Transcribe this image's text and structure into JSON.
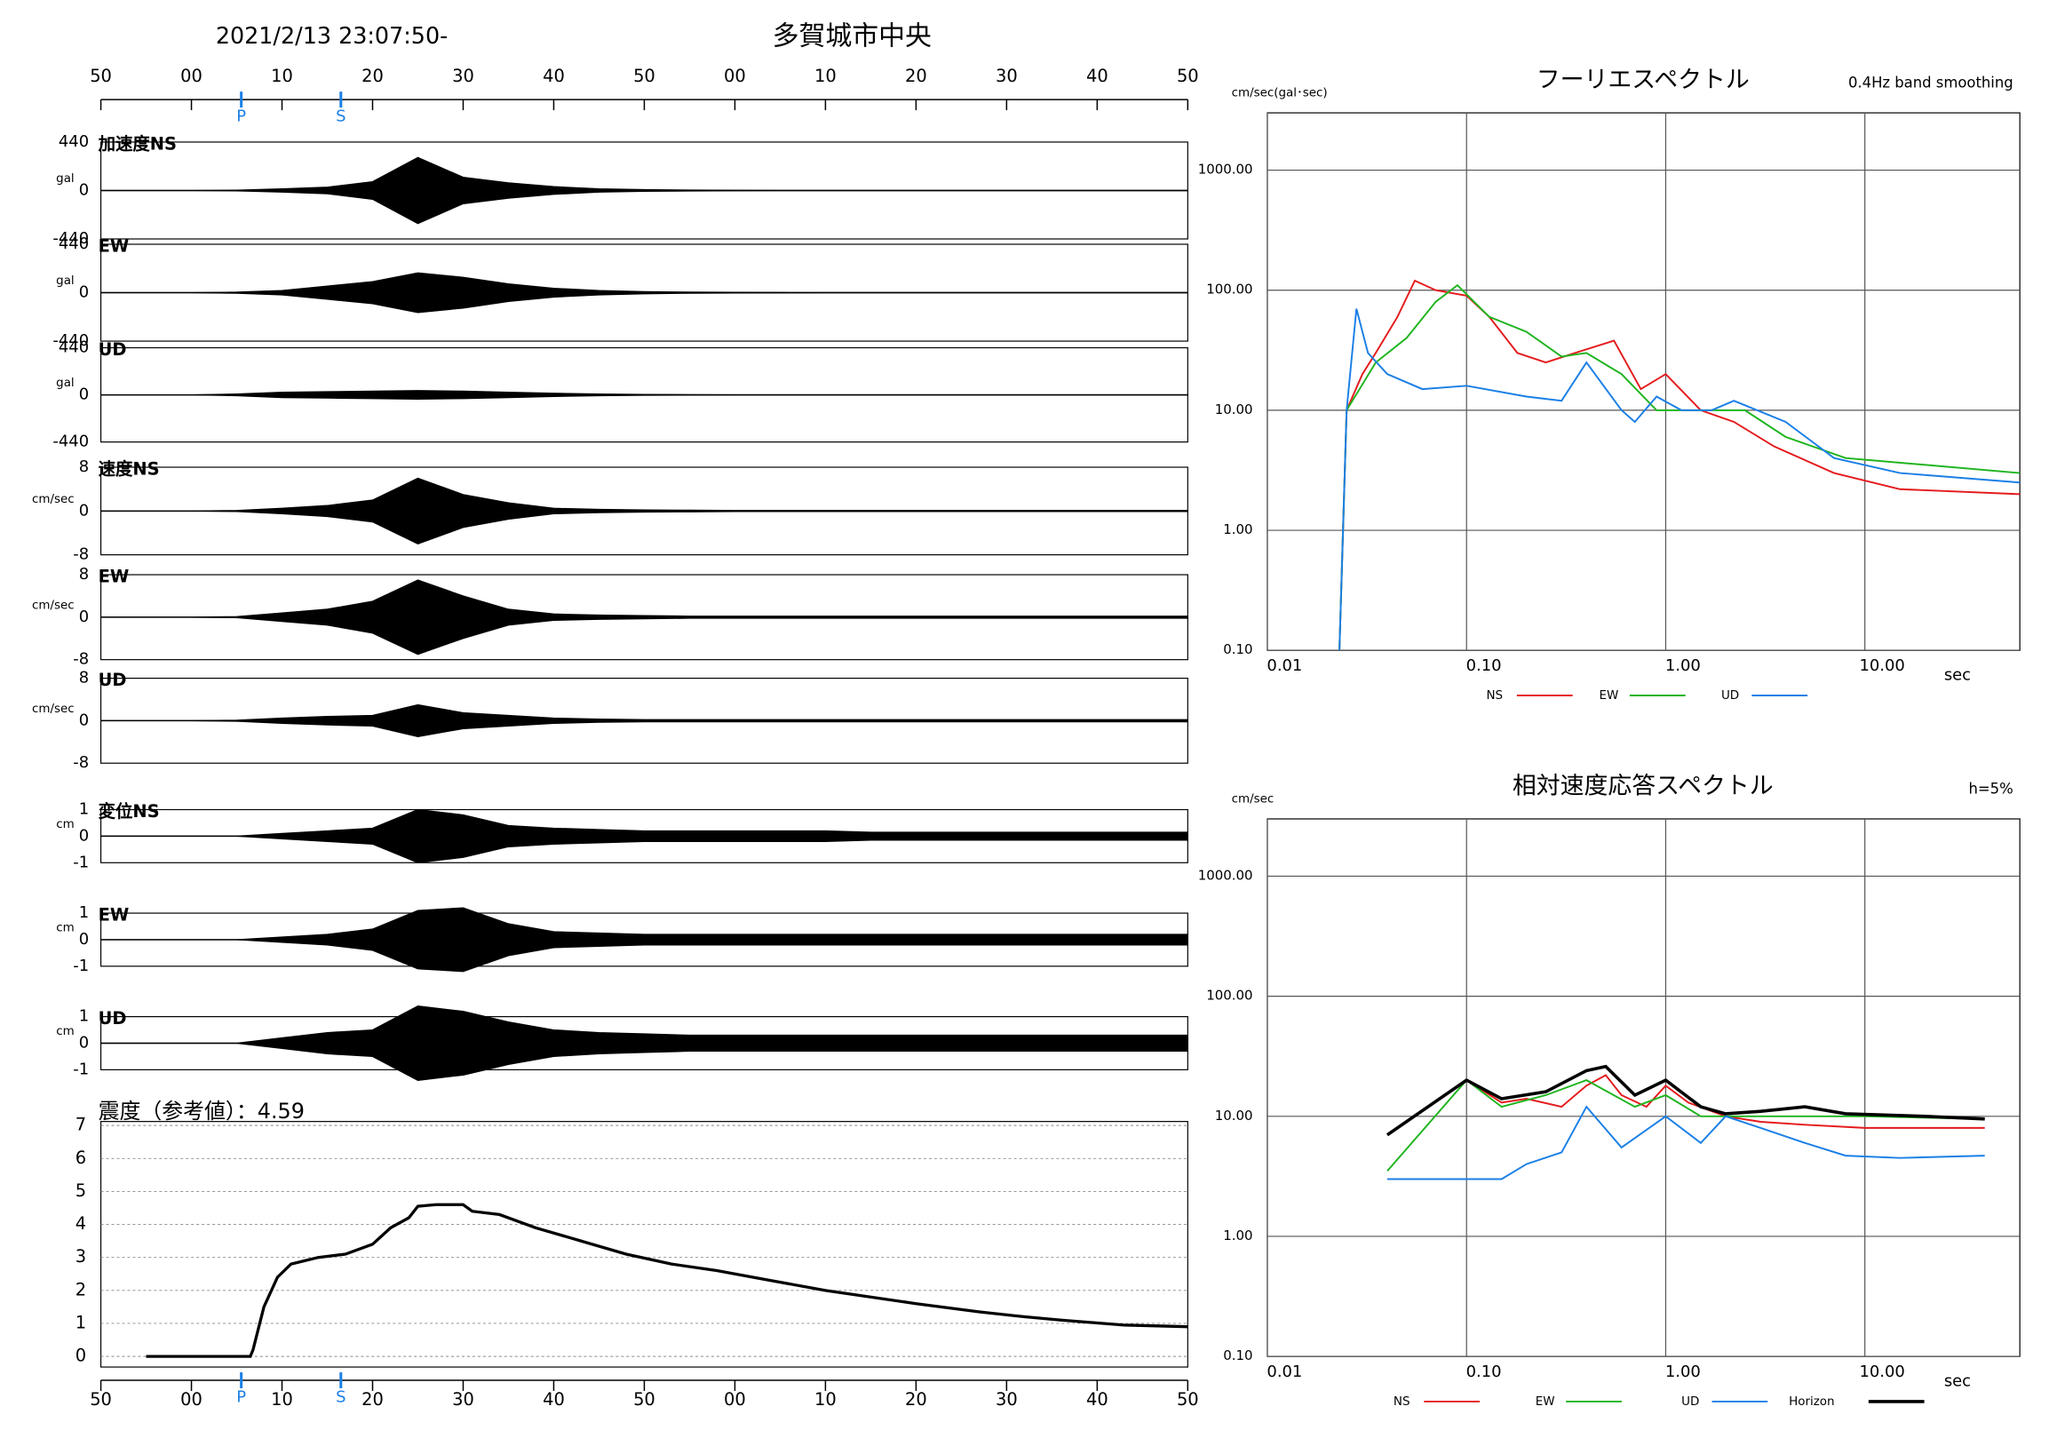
{
  "chart_data": [
    {
      "type": "waveform",
      "title": "多賀城市中央",
      "subtitle": "2021/2/13 23:07:50-",
      "xlim": [
        0,
        120
      ],
      "xticks": [
        {
          "value": 0,
          "label": "50"
        },
        {
          "value": 10,
          "label": "00"
        },
        {
          "value": 20,
          "label": "10"
        },
        {
          "value": 30,
          "label": "20"
        },
        {
          "value": 40,
          "label": "30"
        },
        {
          "value": 50,
          "label": "40"
        },
        {
          "value": 60,
          "label": "50"
        },
        {
          "value": 70,
          "label": "00"
        },
        {
          "value": 80,
          "label": "10"
        },
        {
          "value": 90,
          "label": "20"
        },
        {
          "value": 100,
          "label": "30"
        },
        {
          "value": 110,
          "label": "40"
        },
        {
          "value": 120,
          "label": "50"
        }
      ],
      "markers": [
        {
          "label": "P",
          "x": 15.5
        },
        {
          "label": "S",
          "x": 26.5
        }
      ],
      "x": [
        0,
        5,
        10,
        15,
        20,
        25,
        30,
        35,
        40,
        45,
        50,
        55,
        60,
        65,
        70,
        75,
        80,
        85,
        90,
        95,
        100,
        105,
        110,
        115,
        120
      ],
      "traces": [
        {
          "label": "加速度NS",
          "unit": "gal",
          "ylim": [
            -440,
            440
          ],
          "yticks": [
            440,
            0,
            -440
          ],
          "color": "#000000",
          "values": [
            0,
            0,
            0,
            3,
            15,
            30,
            80,
            300,
            120,
            70,
            35,
            15,
            8,
            4,
            2,
            1,
            1,
            1,
            1,
            1,
            1,
            1,
            1,
            1,
            1
          ]
        },
        {
          "label": "EW",
          "unit": "gal",
          "ylim": [
            -440,
            440
          ],
          "yticks": [
            440,
            0,
            -440
          ],
          "color": "#000000",
          "values": [
            0,
            0,
            0,
            5,
            20,
            60,
            100,
            180,
            140,
            80,
            40,
            20,
            10,
            5,
            3,
            2,
            1,
            1,
            1,
            1,
            1,
            1,
            1,
            1,
            1
          ]
        },
        {
          "label": "UD",
          "unit": "gal",
          "ylim": [
            -440,
            440
          ],
          "yticks": [
            440,
            0,
            -440
          ],
          "color": "#000000",
          "values": [
            0,
            0,
            0,
            8,
            25,
            30,
            35,
            40,
            35,
            25,
            15,
            8,
            4,
            2,
            1,
            1,
            1,
            1,
            1,
            1,
            1,
            1,
            1,
            1,
            1
          ]
        },
        {
          "label": "速度NS",
          "unit": "cm/sec",
          "ylim": [
            -8,
            8
          ],
          "yticks": [
            8,
            0,
            -8
          ],
          "color": "#000000",
          "values": [
            0,
            0,
            0,
            0.1,
            0.5,
            1,
            2,
            6,
            3,
            1.5,
            0.5,
            0.3,
            0.2,
            0.15,
            0.1,
            0.1,
            0.1,
            0.1,
            0.1,
            0.1,
            0.1,
            0.1,
            0.1,
            0.1,
            0.1
          ]
        },
        {
          "label": "EW",
          "unit": "cm/sec",
          "ylim": [
            -8,
            8
          ],
          "yticks": [
            8,
            0,
            -8
          ],
          "color": "#000000",
          "values": [
            0,
            0,
            0,
            0.1,
            0.8,
            1.5,
            3,
            7,
            4,
            1.5,
            0.6,
            0.4,
            0.3,
            0.2,
            0.2,
            0.2,
            0.2,
            0.2,
            0.2,
            0.2,
            0.2,
            0.2,
            0.2,
            0.2,
            0.2
          ]
        },
        {
          "label": "UD",
          "unit": "cm/sec",
          "ylim": [
            -8,
            8
          ],
          "yticks": [
            8,
            0,
            -8
          ],
          "color": "#000000",
          "values": [
            0,
            0,
            0,
            0.1,
            0.5,
            0.8,
            1,
            3,
            1.5,
            1,
            0.5,
            0.3,
            0.2,
            0.2,
            0.2,
            0.2,
            0.2,
            0.2,
            0.2,
            0.2,
            0.2,
            0.2,
            0.2,
            0.2,
            0.2
          ]
        },
        {
          "label": "変位NS",
          "unit": "cm",
          "ylim": [
            -1,
            1
          ],
          "yticks": [
            1,
            0,
            -1
          ],
          "color": "#000000",
          "values": [
            0,
            0,
            0,
            0,
            0.1,
            0.2,
            0.3,
            1,
            0.8,
            0.4,
            0.3,
            0.25,
            0.2,
            0.2,
            0.2,
            0.2,
            0.2,
            0.15,
            0.15,
            0.15,
            0.15,
            0.15,
            0.15,
            0.15,
            0.15
          ]
        },
        {
          "label": "EW",
          "unit": "cm",
          "ylim": [
            -1,
            1
          ],
          "yticks": [
            1,
            0,
            -1
          ],
          "color": "#000000",
          "values": [
            0,
            0,
            0,
            0,
            0.1,
            0.2,
            0.4,
            1.1,
            1.2,
            0.6,
            0.3,
            0.25,
            0.2,
            0.2,
            0.2,
            0.2,
            0.2,
            0.2,
            0.2,
            0.2,
            0.2,
            0.2,
            0.2,
            0.2,
            0.2
          ]
        },
        {
          "label": "UD",
          "unit": "cm",
          "ylim": [
            -1,
            1
          ],
          "yticks": [
            1,
            0,
            -1
          ],
          "color": "#000000",
          "values": [
            0,
            0,
            0,
            0,
            0.2,
            0.4,
            0.5,
            1.4,
            1.2,
            0.8,
            0.5,
            0.4,
            0.35,
            0.3,
            0.3,
            0.3,
            0.3,
            0.3,
            0.3,
            0.3,
            0.3,
            0.3,
            0.3,
            0.3,
            0.3
          ]
        }
      ]
    },
    {
      "type": "line",
      "title": "震度（参考値）：4.59",
      "xlim": [
        0,
        120
      ],
      "xticks": [
        {
          "value": 0,
          "label": "50"
        },
        {
          "value": 10,
          "label": "00"
        },
        {
          "value": 20,
          "label": "10"
        },
        {
          "value": 30,
          "label": "20"
        },
        {
          "value": 40,
          "label": "30"
        },
        {
          "value": 50,
          "label": "40"
        },
        {
          "value": 60,
          "label": "50"
        },
        {
          "value": 70,
          "label": "00"
        },
        {
          "value": 80,
          "label": "10"
        },
        {
          "value": 90,
          "label": "20"
        },
        {
          "value": 100,
          "label": "30"
        },
        {
          "value": 110,
          "label": "40"
        },
        {
          "value": 120,
          "label": "50"
        }
      ],
      "markers": [
        {
          "label": "P",
          "x": 15.5
        },
        {
          "label": "S",
          "x": 26.5
        }
      ],
      "ylim": [
        0,
        7
      ],
      "yticks": [
        0,
        1,
        2,
        3,
        4,
        5,
        6,
        7
      ],
      "grid": true,
      "color": "#000000",
      "x": [
        5,
        16.5,
        16.8,
        18,
        19.5,
        21,
        24,
        27,
        30,
        32,
        34,
        35,
        37,
        40,
        41,
        44,
        48,
        53,
        58,
        63,
        68,
        74,
        80,
        90,
        97,
        102,
        106,
        113,
        120
      ],
      "values": [
        0,
        0,
        0.2,
        1.5,
        2.4,
        2.8,
        3.0,
        3.1,
        3.4,
        3.9,
        4.2,
        4.55,
        4.6,
        4.6,
        4.4,
        4.3,
        3.9,
        3.5,
        3.1,
        2.8,
        2.6,
        2.3,
        2.0,
        1.6,
        1.35,
        1.2,
        1.1,
        0.95,
        0.9
      ]
    },
    {
      "type": "line",
      "log_x": true,
      "log_y": true,
      "grid": true,
      "title": "フーリエスペクトル",
      "subtitle": "0.4Hz band smoothing",
      "ylabel": "cm/sec(gal･sec)",
      "xlabel": "sec",
      "xlim": [
        0.01,
        60
      ],
      "ylim": [
        0.1,
        3000
      ],
      "xticks": [
        0.01,
        {
          "value": 0.1,
          "label": "0.10"
        },
        {
          "value": 1,
          "label": "1.00"
        },
        {
          "value": 10,
          "label": "10.00"
        }
      ],
      "yticks": [
        {
          "value": 0.1,
          "label": "0.10"
        },
        {
          "value": 1,
          "label": "1.00"
        },
        {
          "value": 10,
          "label": "10.00"
        },
        {
          "value": 100,
          "label": "100.00"
        },
        {
          "value": 1000,
          "label": "1000.00"
        }
      ],
      "series": [
        {
          "name": "NS",
          "color": "#e41a1c",
          "x": [
            0.023,
            0.025,
            0.03,
            0.035,
            0.045,
            0.055,
            0.07,
            0.1,
            0.13,
            0.18,
            0.25,
            0.35,
            0.55,
            0.75,
            1.0,
            1.5,
            2.2,
            3.5,
            7,
            15,
            60
          ],
          "values": [
            0.1,
            10,
            20,
            30,
            60,
            120,
            100,
            90,
            60,
            30,
            25,
            30,
            38,
            15,
            20,
            10,
            8,
            5,
            3,
            2.2,
            2
          ]
        },
        {
          "name": "EW",
          "color": "#1fb41f",
          "x": [
            0.023,
            0.025,
            0.035,
            0.05,
            0.07,
            0.09,
            0.13,
            0.2,
            0.3,
            0.4,
            0.6,
            0.9,
            1.5,
            2.5,
            4,
            8,
            60
          ],
          "values": [
            0.1,
            10,
            25,
            40,
            80,
            110,
            60,
            45,
            28,
            30,
            20,
            10,
            10,
            10,
            6,
            4,
            3
          ]
        },
        {
          "name": "UD",
          "color": "#1a7fe6",
          "x": [
            0.023,
            0.025,
            0.028,
            0.032,
            0.04,
            0.06,
            0.1,
            0.2,
            0.3,
            0.4,
            0.6,
            0.7,
            0.9,
            1.2,
            1.7,
            2.2,
            4,
            7,
            15,
            60
          ],
          "values": [
            0.1,
            10,
            70,
            30,
            20,
            15,
            16,
            13,
            12,
            25,
            10,
            8,
            13,
            10,
            10,
            12,
            8,
            4,
            3,
            2.5
          ]
        }
      ]
    },
    {
      "type": "line",
      "log_x": true,
      "log_y": true,
      "grid": true,
      "title": "相対速度応答スペクトル",
      "subtitle": "h=5%",
      "ylabel": "cm/sec",
      "xlabel": "sec",
      "xlim": [
        0.01,
        60
      ],
      "ylim": [
        0.1,
        3000
      ],
      "xticks": [
        0.01,
        {
          "value": 0.1,
          "label": "0.10"
        },
        {
          "value": 1,
          "label": "1.00"
        },
        {
          "value": 10,
          "label": "10.00"
        }
      ],
      "yticks": [
        {
          "value": 0.1,
          "label": "0.10"
        },
        {
          "value": 1,
          "label": "1.00"
        },
        {
          "value": 10,
          "label": "10.00"
        },
        {
          "value": 100,
          "label": "100.00"
        },
        {
          "value": 1000,
          "label": "1000.00"
        }
      ],
      "series": [
        {
          "name": "NS",
          "color": "#e41a1c",
          "x": [
            0.04,
            0.1,
            0.15,
            0.2,
            0.3,
            0.4,
            0.5,
            0.6,
            0.8,
            1.0,
            1.3,
            2,
            3,
            5,
            10,
            40
          ],
          "values": [
            7,
            20,
            13,
            14,
            12,
            18,
            22,
            15,
            12,
            18,
            13,
            10,
            9,
            8.5,
            8,
            8
          ]
        },
        {
          "name": "EW",
          "color": "#1fb41f",
          "x": [
            0.04,
            0.1,
            0.15,
            0.25,
            0.4,
            0.7,
            1.0,
            1.5,
            2,
            4,
            10,
            40
          ],
          "values": [
            3.5,
            20,
            12,
            15,
            20,
            12,
            15,
            10,
            10,
            10,
            10,
            9.5
          ]
        },
        {
          "name": "UD",
          "color": "#1a7fe6",
          "x": [
            0.04,
            0.1,
            0.15,
            0.2,
            0.3,
            0.4,
            0.6,
            1.0,
            1.5,
            2,
            3,
            5,
            8,
            15,
            40
          ],
          "values": [
            3,
            3,
            3,
            4,
            5,
            12,
            5.5,
            10,
            6,
            10,
            8,
            6,
            4.7,
            4.5,
            4.7
          ]
        },
        {
          "name": "Horizon",
          "color": "#000000",
          "x": [
            0.04,
            0.1,
            0.15,
            0.25,
            0.4,
            0.5,
            0.7,
            1.0,
            1.5,
            2,
            3,
            5,
            8,
            20,
            40
          ],
          "values": [
            7,
            20,
            14,
            16,
            24,
            26,
            15,
            20,
            12,
            10.5,
            11,
            12,
            10.5,
            10,
            9.5
          ]
        }
      ]
    }
  ]
}
